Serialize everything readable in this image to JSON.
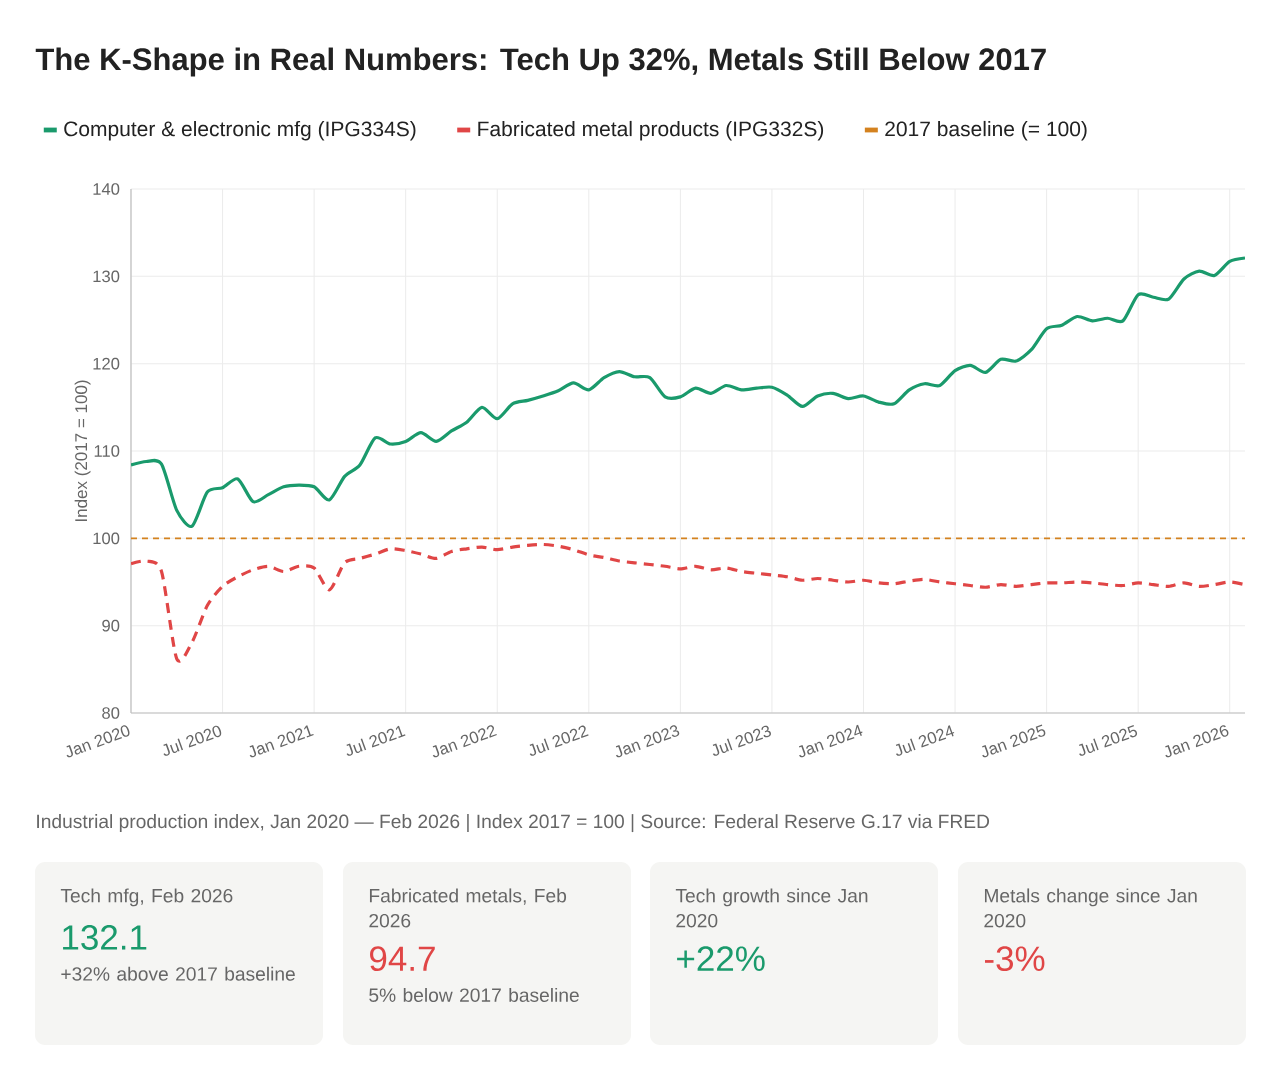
{
  "chart_data": {
    "type": "line",
    "title": "The K-Shape in Real Numbers: Tech Up 32%, Metals Still Below 2017",
    "ylabel": "Index (2017 = 100)",
    "x": [
      "2020-01",
      "2020-02",
      "2020-03",
      "2020-04",
      "2020-05",
      "2020-06",
      "2020-07",
      "2020-08",
      "2020-09",
      "2020-10",
      "2020-11",
      "2020-12",
      "2021-01",
      "2021-02",
      "2021-03",
      "2021-04",
      "2021-05",
      "2021-06",
      "2021-07",
      "2021-08",
      "2021-09",
      "2021-10",
      "2021-11",
      "2021-12",
      "2022-01",
      "2022-02",
      "2022-03",
      "2022-04",
      "2022-05",
      "2022-06",
      "2022-07",
      "2022-08",
      "2022-09",
      "2022-10",
      "2022-11",
      "2022-12",
      "2023-01",
      "2023-02",
      "2023-03",
      "2023-04",
      "2023-05",
      "2023-06",
      "2023-07",
      "2023-08",
      "2023-09",
      "2023-10",
      "2023-11",
      "2023-12",
      "2024-01",
      "2024-02",
      "2024-03",
      "2024-04",
      "2024-05",
      "2024-06",
      "2024-07",
      "2024-08",
      "2024-09",
      "2024-10",
      "2024-11",
      "2024-12",
      "2025-01",
      "2025-02",
      "2025-03",
      "2025-04",
      "2025-05",
      "2025-06",
      "2025-07",
      "2025-08",
      "2025-09",
      "2025-10",
      "2025-11",
      "2025-12",
      "2026-01",
      "2026-02"
    ],
    "series": [
      {
        "name": "Computer & electronic mfg (IPG334S)",
        "color": "#1a9a6c",
        "line_style": "solid",
        "values": [
          108.4,
          108.8,
          108.5,
          103.2,
          101.4,
          105.3,
          105.8,
          106.8,
          104.2,
          105.0,
          105.9,
          106.1,
          105.9,
          104.4,
          107.1,
          108.4,
          111.5,
          110.8,
          111.1,
          112.1,
          111.1,
          112.3,
          113.3,
          115.0,
          113.7,
          115.4,
          115.8,
          116.3,
          116.9,
          117.8,
          117.0,
          118.4,
          119.1,
          118.5,
          118.4,
          116.2,
          116.2,
          117.2,
          116.6,
          117.5,
          117.0,
          117.2,
          117.3,
          116.4,
          115.1,
          116.3,
          116.6,
          116.0,
          116.3,
          115.6,
          115.4,
          117.0,
          117.7,
          117.5,
          119.2,
          119.8,
          119.0,
          120.5,
          120.3,
          121.6,
          124.0,
          124.4,
          125.4,
          124.9,
          125.2,
          124.9,
          127.9,
          127.6,
          127.4,
          129.7,
          130.6,
          130.1,
          131.7,
          132.1
        ]
      },
      {
        "name": "Fabricated metal products (IPG332S)",
        "color": "#e04646",
        "line_style": "dashed",
        "values": [
          97.1,
          97.4,
          96.2,
          86.2,
          88.1,
          92.3,
          94.5,
          95.6,
          96.4,
          96.8,
          96.2,
          96.8,
          96.6,
          94.1,
          97.2,
          97.7,
          98.2,
          98.8,
          98.6,
          98.2,
          97.7,
          98.5,
          98.8,
          99.0,
          98.7,
          99.0,
          99.2,
          99.3,
          99.1,
          98.7,
          98.1,
          97.8,
          97.4,
          97.2,
          97.0,
          96.8,
          96.5,
          96.8,
          96.4,
          96.6,
          96.2,
          96.0,
          95.8,
          95.6,
          95.2,
          95.4,
          95.2,
          95.0,
          95.2,
          94.9,
          94.8,
          95.1,
          95.3,
          95.0,
          94.8,
          94.6,
          94.4,
          94.7,
          94.5,
          94.7,
          94.9,
          94.9,
          95.0,
          94.9,
          94.7,
          94.6,
          94.9,
          94.7,
          94.5,
          94.9,
          94.5,
          94.7,
          95.0,
          94.7
        ]
      }
    ],
    "ref_lines": [
      {
        "axis": "y",
        "value": 100,
        "label": "2017 baseline (= 100)",
        "color": "#d4821f",
        "line_style": "dashed"
      }
    ],
    "xlim": [
      "2020-01",
      "2026-02"
    ],
    "xticks": [
      {
        "value": "2020-01",
        "label": "Jan 2020"
      },
      {
        "value": "2020-07",
        "label": "Jul 2020"
      },
      {
        "value": "2021-01",
        "label": "Jan 2021"
      },
      {
        "value": "2021-07",
        "label": "Jul 2021"
      },
      {
        "value": "2022-01",
        "label": "Jan 2022"
      },
      {
        "value": "2022-07",
        "label": "Jul 2022"
      },
      {
        "value": "2023-01",
        "label": "Jan 2023"
      },
      {
        "value": "2023-07",
        "label": "Jul 2023"
      },
      {
        "value": "2024-01",
        "label": "Jan 2024"
      },
      {
        "value": "2024-07",
        "label": "Jul 2024"
      },
      {
        "value": "2025-01",
        "label": "Jan 2025"
      },
      {
        "value": "2025-07",
        "label": "Jul 2025"
      },
      {
        "value": "2026-01",
        "label": "Jan 2026"
      }
    ],
    "ylim": [
      80,
      140
    ],
    "yticks": [
      80,
      90,
      100,
      110,
      120,
      130,
      140
    ],
    "grid": true,
    "legend": "top",
    "marker": "none",
    "annotations": [
      "Industrial production index, Jan 2020 — Feb 2026  |  Index 2017 = 100  |  Source: Federal Reserve G.17 via FRED",
      "Tech mfg, Feb 2026",
      "132.1",
      "+32% above 2017 baseline",
      "Fabricated metals, Feb 2026",
      "94.7",
      "5% below 2017 baseline",
      "Tech growth since Jan 2020",
      "+22%",
      "Metals change since Jan 2020",
      "-3%"
    ]
  }
}
